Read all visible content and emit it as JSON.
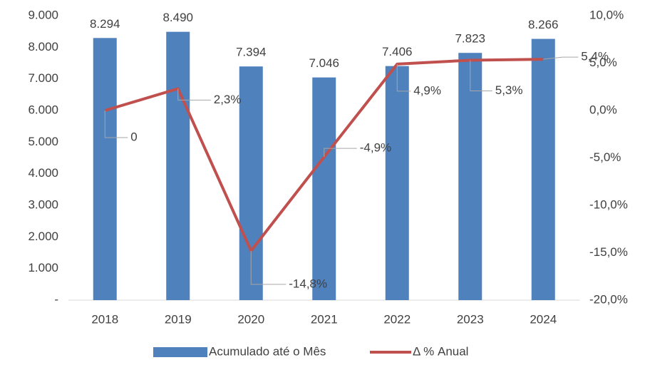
{
  "chart_data": {
    "type": "bar",
    "categories": [
      "2018",
      "2019",
      "2020",
      "2021",
      "2022",
      "2023",
      "2024"
    ],
    "series": [
      {
        "name": "Acumulado até o Mês",
        "type": "bar",
        "color": "#4f81bd",
        "values": [
          8294,
          8490,
          7394,
          7046,
          7406,
          7823,
          8266
        ],
        "value_labels": [
          "8.294",
          "8.490",
          "7.394",
          "7.046",
          "7.406",
          "7.823",
          "8.266"
        ]
      },
      {
        "name": "Δ % Anual",
        "type": "line",
        "axis": "y2",
        "color": "#c0504d",
        "values": [
          0,
          2.3,
          -14.8,
          -4.9,
          4.9,
          5.3,
          5.4
        ],
        "value_labels": [
          "0",
          "2,3%",
          "-14,8%",
          "-4,9%",
          "4,9%",
          "5,3%",
          "5,4%"
        ]
      }
    ],
    "ylim": [
      0,
      9000
    ],
    "yticks": [
      {
        "value": 0,
        "label": "-"
      },
      {
        "value": 1000,
        "label": "1.000"
      },
      {
        "value": 2000,
        "label": "2.000"
      },
      {
        "value": 3000,
        "label": "3.000"
      },
      {
        "value": 4000,
        "label": "4.000"
      },
      {
        "value": 5000,
        "label": "5.000"
      },
      {
        "value": 6000,
        "label": "6.000"
      },
      {
        "value": 7000,
        "label": "7.000"
      },
      {
        "value": 8000,
        "label": "8.000"
      },
      {
        "value": 9000,
        "label": "9.000"
      }
    ],
    "y2lim": [
      -20,
      10
    ],
    "y2ticks": [
      {
        "value": -20,
        "label": "-20,0%"
      },
      {
        "value": -15,
        "label": "-15,0%"
      },
      {
        "value": -10,
        "label": "-10,0%"
      },
      {
        "value": -5,
        "label": "-5,0%"
      },
      {
        "value": 0,
        "label": "0,0%"
      },
      {
        "value": 5,
        "label": "5,0%"
      },
      {
        "value": 10,
        "label": "10,0%"
      }
    ],
    "grid": false,
    "legend": "bottom"
  }
}
